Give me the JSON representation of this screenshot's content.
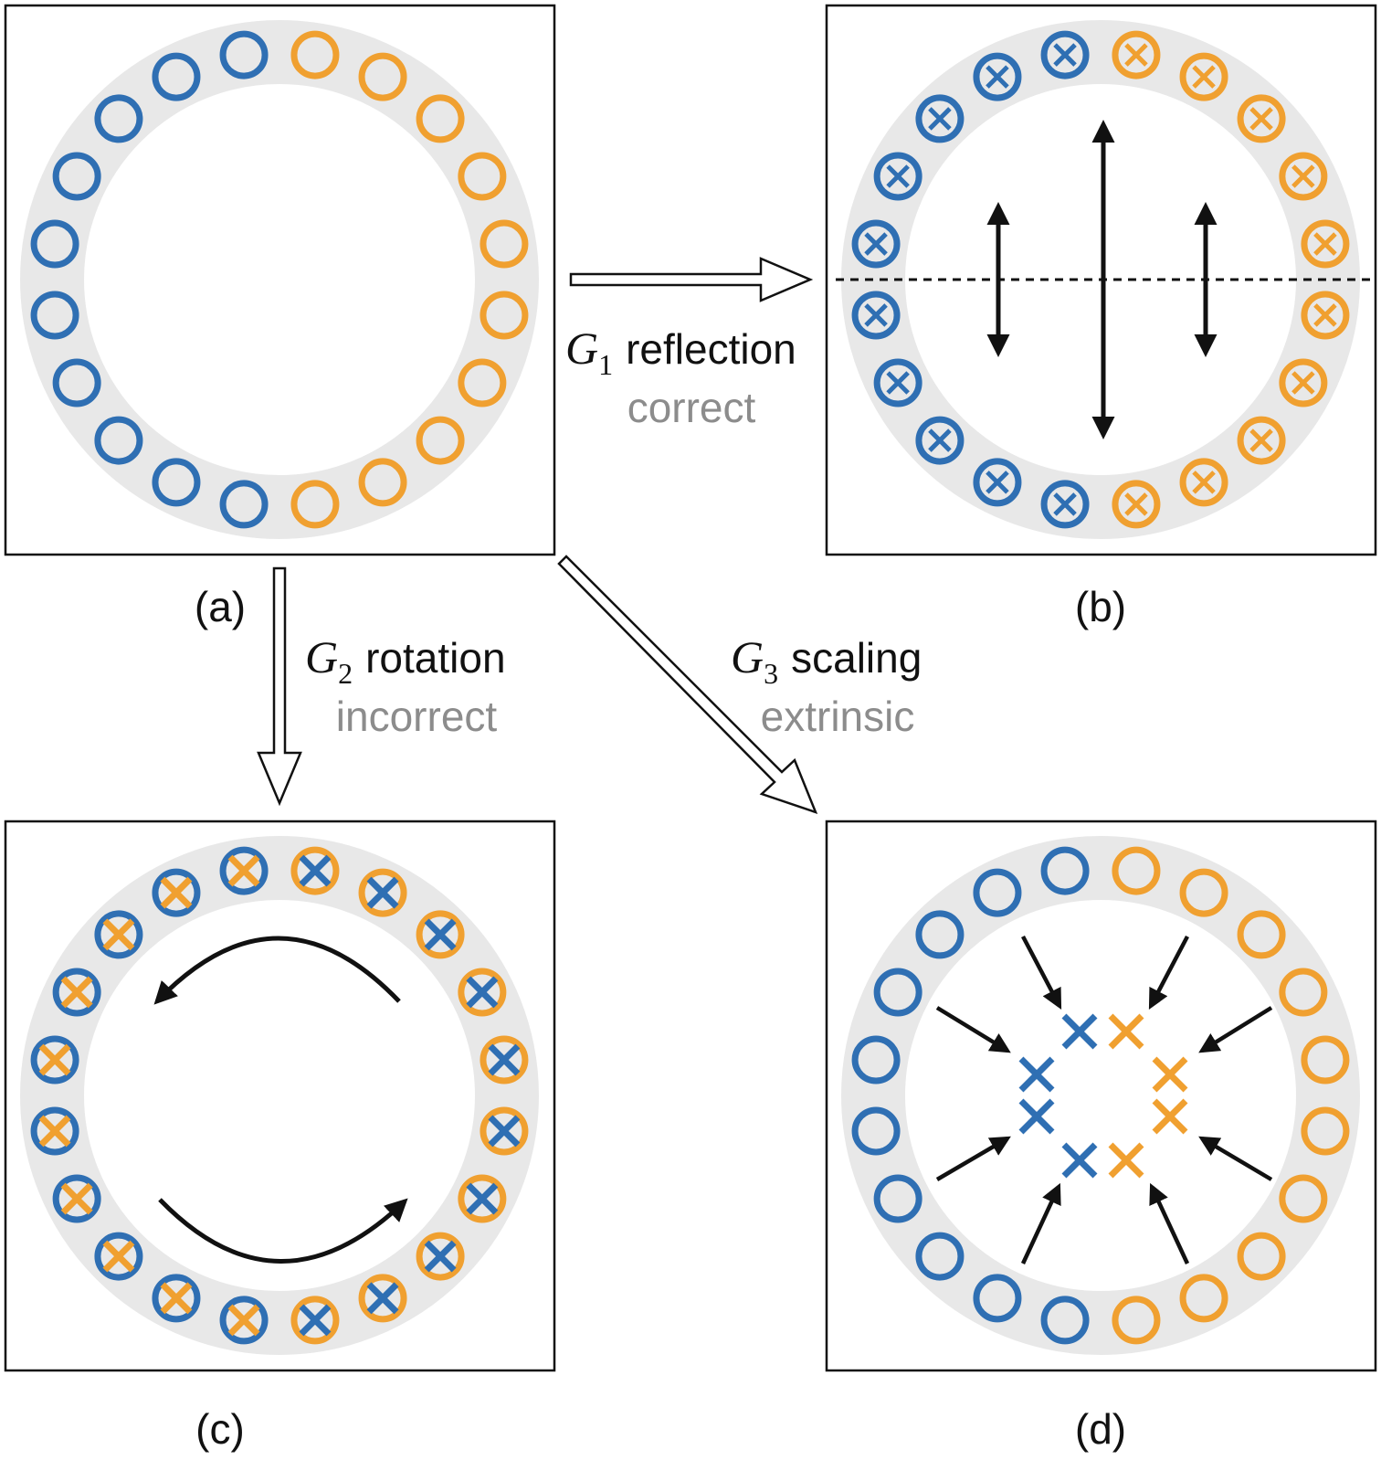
{
  "colors": {
    "blue": "#2f6fb3",
    "orange": "#f0a030",
    "ring": "#e8e8e8",
    "frame": "#111111",
    "note": "#8c8c8c"
  },
  "panels": {
    "a": {
      "label": "(a)"
    },
    "b": {
      "label": "(b)"
    },
    "c": {
      "label": "(c)"
    },
    "d": {
      "label": "(d)"
    }
  },
  "transforms": {
    "g1": {
      "symbol": "G",
      "index": "1",
      "name": "reflection",
      "verdict": "correct"
    },
    "g2": {
      "symbol": "G",
      "index": "2",
      "name": "rotation",
      "verdict": "incorrect"
    },
    "g3": {
      "symbol": "G",
      "index": "3",
      "name": "scaling",
      "verdict": "extrinsic"
    }
  },
  "icons": {
    "empty_marker": "ring-marker",
    "cross_marker": "circled-cross-marker",
    "bare_marker": "cross-marker",
    "arrows": "double-headed-arrow, curved-arrow, inward-arrow"
  }
}
